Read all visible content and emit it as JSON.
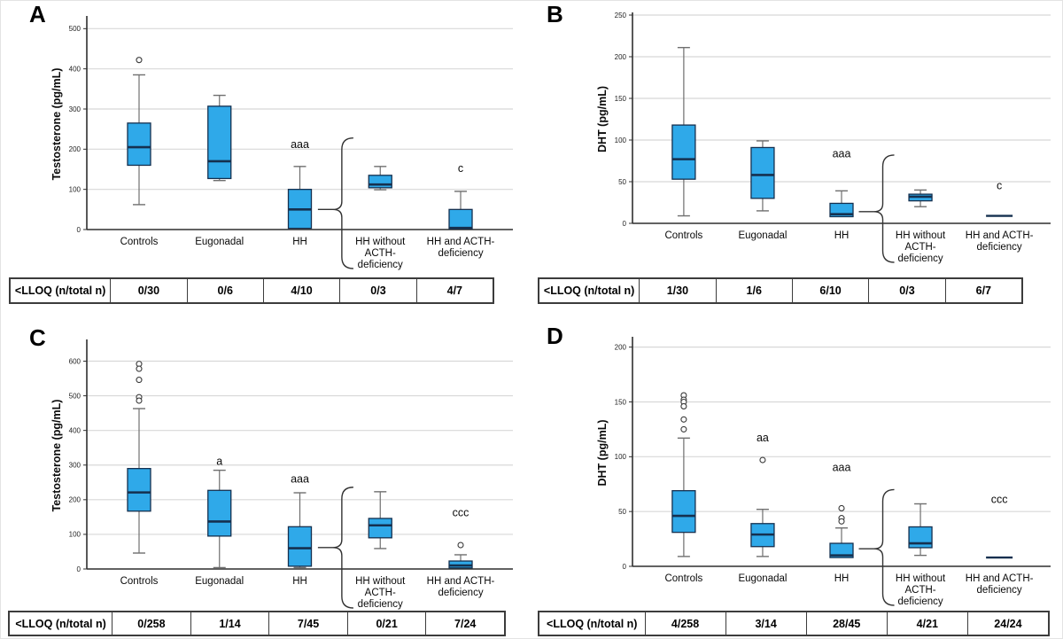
{
  "colors": {
    "box_fill": "#2FA9E9",
    "box_stroke": "#15304F",
    "median": "#15304F",
    "whisker": "#6f6f6f",
    "grid": "#d8d8d8",
    "axis": "#2f2f2f",
    "text": "#111111"
  },
  "chart_data": [
    {
      "type": "box",
      "letter": "A",
      "ylabel": "Testosterone (pg/mL)",
      "ylim": [
        0,
        525
      ],
      "grid": true,
      "yticks": [
        0,
        100,
        200,
        300,
        400,
        500
      ],
      "categories": [
        {
          "label": "Controls",
          "lines": [
            "Controls"
          ]
        },
        {
          "label": "Eugonadal",
          "lines": [
            "Eugonadal"
          ]
        },
        {
          "label": "HH",
          "lines": [
            "HH"
          ]
        },
        {
          "label": "HH without ACTH-deficiency",
          "lines": [
            "HH without",
            "ACTH-",
            "deficiency"
          ]
        },
        {
          "label": "HH and ACTH-deficiency",
          "lines": [
            "HH and ACTH-",
            "deficiency"
          ]
        }
      ],
      "boxes": [
        {
          "low": 62,
          "q1": 160,
          "median": 205,
          "q3": 265,
          "high": 385,
          "outliers": [
            422
          ]
        },
        {
          "low": 122,
          "q1": 127,
          "median": 170,
          "q3": 307,
          "high": 334,
          "outliers": []
        },
        {
          "low": 3,
          "q1": 3,
          "median": 50,
          "q3": 100,
          "high": 157,
          "outliers": []
        },
        {
          "low": 99,
          "q1": 104,
          "median": 112,
          "q3": 135,
          "high": 157,
          "outliers": []
        },
        {
          "low": 2,
          "q1": 2,
          "median": 4,
          "q3": 50,
          "high": 95,
          "outliers": []
        }
      ],
      "annotations": [
        {
          "category": 2,
          "text": "aaa",
          "y": 203
        },
        {
          "category": 4,
          "text": "c",
          "y": 143
        }
      ],
      "brace": {
        "top": 228,
        "cusp": 50
      },
      "table": {
        "header": "<LLOQ (n/total n)",
        "values": [
          "0/30",
          "0/6",
          "4/10",
          "0/3",
          "4/7"
        ]
      }
    },
    {
      "type": "box",
      "letter": "B",
      "ylabel": "DHT (pg/mL)",
      "ylim": [
        0,
        250
      ],
      "grid": true,
      "yticks": [
        0,
        50,
        100,
        150,
        200,
        250
      ],
      "categories": [
        {
          "label": "Controls",
          "lines": [
            "Controls"
          ]
        },
        {
          "label": "Eugonadal",
          "lines": [
            "Eugonadal"
          ]
        },
        {
          "label": "HH",
          "lines": [
            "HH"
          ]
        },
        {
          "label": "HH without ACTH-deficiency",
          "lines": [
            "HH without",
            "ACTH-",
            "deficiency"
          ]
        },
        {
          "label": "HH and ACTH-deficiency",
          "lines": [
            "HH and ACTH-",
            "deficiency"
          ]
        }
      ],
      "boxes": [
        {
          "low": 9,
          "q1": 53,
          "median": 77,
          "q3": 118,
          "high": 211,
          "outliers": []
        },
        {
          "low": 15,
          "q1": 30,
          "median": 58,
          "q3": 91,
          "high": 99,
          "outliers": []
        },
        {
          "low": 8,
          "q1": 8,
          "median": 11,
          "q3": 24,
          "high": 39,
          "outliers": []
        },
        {
          "low": 20,
          "q1": 27,
          "median": 32,
          "q3": 35,
          "high": 40,
          "outliers": []
        },
        {
          "flat_line": 9,
          "outliers": []
        }
      ],
      "annotations": [
        {
          "category": 2,
          "text": "aaa",
          "y": 79
        },
        {
          "category": 4,
          "text": "c",
          "y": 41
        }
      ],
      "brace": {
        "top": 82,
        "cusp": 14
      },
      "table": {
        "header": "<LLOQ (n/total n)",
        "values": [
          "1/30",
          "1/6",
          "6/10",
          "0/3",
          "6/7"
        ]
      }
    },
    {
      "type": "box",
      "letter": "C",
      "ylabel": "Testosterone (pg/mL)",
      "ylim": [
        0,
        655
      ],
      "grid": true,
      "yticks": [
        0,
        100,
        200,
        300,
        400,
        500,
        600
      ],
      "categories": [
        {
          "label": "Controls",
          "lines": [
            "Controls"
          ]
        },
        {
          "label": "Eugonadal",
          "lines": [
            "Eugonadal"
          ]
        },
        {
          "label": "HH",
          "lines": [
            "HH"
          ]
        },
        {
          "label": "HH without ACTH-deficiency",
          "lines": [
            "HH without",
            "ACTH-",
            "deficiency"
          ]
        },
        {
          "label": "HH and ACTH-deficiency",
          "lines": [
            "HH and ACTH-",
            "deficiency"
          ]
        }
      ],
      "boxes": [
        {
          "low": 46,
          "q1": 167,
          "median": 221,
          "q3": 290,
          "high": 463,
          "outliers": [
            592,
            578,
            546,
            496,
            486
          ]
        },
        {
          "low": 4,
          "q1": 95,
          "median": 137,
          "q3": 227,
          "high": 285,
          "outliers": []
        },
        {
          "low": 4,
          "q1": 8,
          "median": 60,
          "q3": 122,
          "high": 220,
          "outliers": []
        },
        {
          "low": 59,
          "q1": 90,
          "median": 126,
          "q3": 146,
          "high": 223,
          "outliers": []
        },
        {
          "low": 3,
          "q1": 3,
          "median": 10,
          "q3": 23,
          "high": 41,
          "outliers": [
            69
          ]
        }
      ],
      "annotations": [
        {
          "category": 1,
          "text": "a",
          "y": 300
        },
        {
          "category": 2,
          "text": "aaa",
          "y": 250
        },
        {
          "category": 4,
          "text": "ccc",
          "y": 152
        }
      ],
      "brace": {
        "top": 236,
        "cusp": 62
      },
      "table": {
        "header": "<LLOQ (n/total n)",
        "values": [
          "0/258",
          "1/14",
          "7/45",
          "0/21",
          "7/24"
        ]
      }
    },
    {
      "type": "box",
      "letter": "D",
      "ylabel": "DHT (pg/mL)",
      "ylim": [
        0,
        207
      ],
      "grid": true,
      "yticks": [
        0,
        50,
        100,
        150,
        200
      ],
      "categories": [
        {
          "label": "Controls",
          "lines": [
            "Controls"
          ]
        },
        {
          "label": "Eugonadal",
          "lines": [
            "Eugonadal"
          ]
        },
        {
          "label": "HH",
          "lines": [
            "HH"
          ]
        },
        {
          "label": "HH without ACTH-deficiency",
          "lines": [
            "HH without",
            "ACTH-",
            "deficiency"
          ]
        },
        {
          "label": "HH and ACTH-deficiency",
          "lines": [
            "HH and ACTH-",
            "deficiency"
          ]
        }
      ],
      "boxes": [
        {
          "low": 9,
          "q1": 31,
          "median": 46,
          "q3": 69,
          "high": 117,
          "outliers": [
            156,
            152,
            150,
            146,
            134,
            125
          ]
        },
        {
          "low": 9,
          "q1": 18,
          "median": 29,
          "q3": 39,
          "high": 52,
          "outliers": [
            97
          ]
        },
        {
          "low": 8,
          "q1": 8,
          "median": 10,
          "q3": 21,
          "high": 35,
          "outliers": [
            53,
            44,
            41
          ]
        },
        {
          "low": 10,
          "q1": 17,
          "median": 21,
          "q3": 36,
          "high": 57,
          "outliers": []
        },
        {
          "flat_line": 8,
          "outliers": []
        }
      ],
      "annotations": [
        {
          "category": 1,
          "text": "aa",
          "y": 114
        },
        {
          "category": 2,
          "text": "aaa",
          "y": 87
        },
        {
          "category": 4,
          "text": "ccc",
          "y": 58
        }
      ],
      "brace": {
        "top": 70,
        "cusp": 16
      },
      "table": {
        "header": "<LLOQ (n/total n)",
        "values": [
          "4/258",
          "3/14",
          "28/45",
          "4/21",
          "24/24"
        ]
      }
    }
  ]
}
